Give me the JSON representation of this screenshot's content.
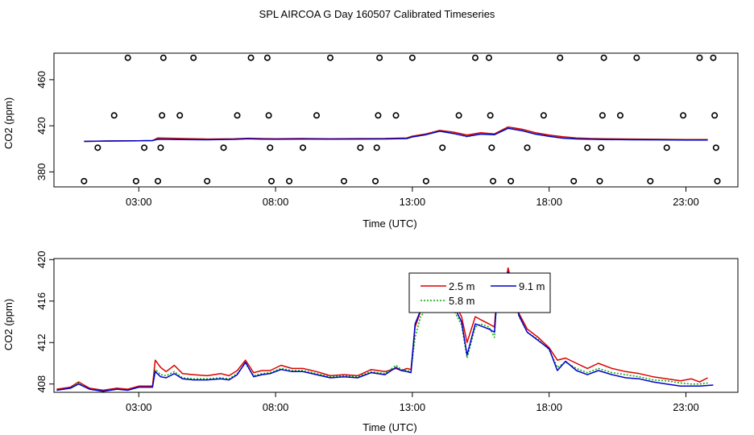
{
  "page_title": "SPL AIRCOA G  Day 160507  Calibrated Timeseries",
  "chart_data": [
    {
      "type": "line",
      "panel": "top",
      "title": "SPL AIRCOA G  Day 160507  Calibrated Timeseries",
      "xlabel": "Time (UTC)",
      "ylabel": "CO2 (ppm)",
      "xlim": [
        -0.1,
        24.9
      ],
      "ylim": [
        367,
        483
      ],
      "x_ticks": [
        3,
        8,
        13,
        18,
        23
      ],
      "x_tick_labels": [
        "03:00",
        "08:00",
        "13:00",
        "18:00",
        "23:00"
      ],
      "y_ticks": [
        380,
        420,
        460
      ],
      "y_tick_labels": [
        "380",
        "420",
        "460"
      ],
      "series": [
        {
          "name": "2.5 m",
          "color": "#dd0000",
          "x": [
            1.0,
            2.0,
            3.0,
            3.5,
            3.7,
            4.5,
            5.5,
            6.5,
            7.0,
            7.5,
            8.0,
            9.0,
            10.0,
            11.0,
            12.0,
            12.8,
            13.0,
            13.5,
            14.0,
            14.5,
            15.0,
            15.5,
            16.0,
            16.5,
            17.0,
            17.5,
            18.0,
            18.5,
            19.0,
            19.5,
            20.0,
            21.0,
            22.0,
            23.0,
            23.8
          ],
          "y": [
            406.5,
            406.8,
            407.0,
            407.2,
            409.5,
            409.0,
            408.5,
            408.8,
            409.2,
            408.9,
            408.7,
            409.0,
            408.8,
            408.9,
            409.0,
            409.5,
            411.0,
            413.0,
            416.0,
            414.5,
            412.0,
            414.0,
            413.0,
            419.0,
            417.0,
            414.0,
            412.0,
            410.5,
            409.5,
            409.0,
            408.8,
            408.5,
            408.3,
            408.0,
            408.0
          ]
        },
        {
          "name": "5.8 m",
          "color": "#00aa00",
          "x": [
            1.0,
            2.0,
            3.0,
            3.5,
            3.7,
            4.5,
            5.5,
            6.5,
            7.0,
            7.5,
            8.0,
            9.0,
            10.0,
            11.0,
            12.0,
            12.8,
            13.0,
            13.5,
            14.0,
            14.5,
            15.0,
            15.5,
            16.0,
            16.5,
            17.0,
            17.5,
            18.0,
            18.5,
            19.0,
            19.5,
            20.0,
            21.0,
            22.0,
            23.0,
            23.8
          ],
          "y": [
            406.5,
            406.8,
            407.0,
            407.2,
            408.5,
            408.3,
            408.0,
            408.3,
            408.8,
            408.5,
            408.4,
            408.6,
            408.5,
            408.6,
            408.7,
            409.0,
            410.5,
            412.5,
            415.5,
            413.5,
            410.5,
            413.0,
            412.5,
            418.0,
            416.0,
            413.0,
            411.0,
            409.5,
            408.8,
            408.5,
            408.3,
            408.1,
            408.0,
            407.8,
            407.8
          ]
        },
        {
          "name": "9.1 m",
          "color": "#0000cc",
          "x": [
            1.0,
            2.0,
            3.0,
            3.5,
            3.7,
            4.5,
            5.5,
            6.5,
            7.0,
            7.5,
            8.0,
            9.0,
            10.0,
            11.0,
            12.0,
            12.8,
            13.0,
            13.5,
            14.0,
            14.5,
            15.0,
            15.5,
            16.0,
            16.5,
            17.0,
            17.5,
            18.0,
            18.5,
            19.0,
            19.5,
            20.0,
            21.0,
            22.0,
            23.0,
            23.8
          ],
          "y": [
            406.5,
            406.8,
            407.0,
            407.2,
            408.3,
            408.1,
            407.9,
            408.2,
            408.7,
            408.4,
            408.3,
            408.5,
            408.4,
            408.5,
            408.6,
            408.9,
            410.3,
            412.3,
            415.3,
            413.3,
            410.8,
            412.8,
            412.3,
            417.8,
            415.8,
            412.8,
            410.8,
            409.3,
            408.6,
            408.3,
            408.1,
            407.9,
            407.8,
            407.6,
            407.6
          ]
        }
      ],
      "markers": [
        {
          "x": 1.0,
          "y": 372
        },
        {
          "x": 1.5,
          "y": 401
        },
        {
          "x": 2.1,
          "y": 429
        },
        {
          "x": 2.6,
          "y": 479
        },
        {
          "x": 2.9,
          "y": 372
        },
        {
          "x": 3.2,
          "y": 401
        },
        {
          "x": 3.7,
          "y": 372
        },
        {
          "x": 3.8,
          "y": 401
        },
        {
          "x": 3.85,
          "y": 429
        },
        {
          "x": 3.9,
          "y": 479
        },
        {
          "x": 4.5,
          "y": 429
        },
        {
          "x": 5.0,
          "y": 479
        },
        {
          "x": 5.5,
          "y": 372
        },
        {
          "x": 6.1,
          "y": 401
        },
        {
          "x": 6.6,
          "y": 429
        },
        {
          "x": 7.1,
          "y": 479
        },
        {
          "x": 7.7,
          "y": 479
        },
        {
          "x": 7.75,
          "y": 429
        },
        {
          "x": 7.8,
          "y": 401
        },
        {
          "x": 7.85,
          "y": 372
        },
        {
          "x": 8.5,
          "y": 372
        },
        {
          "x": 9.0,
          "y": 401
        },
        {
          "x": 9.5,
          "y": 429
        },
        {
          "x": 10.0,
          "y": 479
        },
        {
          "x": 10.5,
          "y": 372
        },
        {
          "x": 11.1,
          "y": 401
        },
        {
          "x": 11.7,
          "y": 401
        },
        {
          "x": 11.75,
          "y": 429
        },
        {
          "x": 11.8,
          "y": 479
        },
        {
          "x": 11.65,
          "y": 372
        },
        {
          "x": 12.4,
          "y": 429
        },
        {
          "x": 13.0,
          "y": 479
        },
        {
          "x": 13.5,
          "y": 372
        },
        {
          "x": 14.1,
          "y": 401
        },
        {
          "x": 14.7,
          "y": 429
        },
        {
          "x": 15.3,
          "y": 479
        },
        {
          "x": 15.8,
          "y": 479
        },
        {
          "x": 15.85,
          "y": 429
        },
        {
          "x": 15.9,
          "y": 401
        },
        {
          "x": 15.95,
          "y": 372
        },
        {
          "x": 16.6,
          "y": 372
        },
        {
          "x": 17.2,
          "y": 401
        },
        {
          "x": 17.8,
          "y": 429
        },
        {
          "x": 18.4,
          "y": 479
        },
        {
          "x": 18.9,
          "y": 372
        },
        {
          "x": 19.4,
          "y": 401
        },
        {
          "x": 19.9,
          "y": 401
        },
        {
          "x": 19.95,
          "y": 429
        },
        {
          "x": 20.0,
          "y": 479
        },
        {
          "x": 19.85,
          "y": 372
        },
        {
          "x": 20.6,
          "y": 429
        },
        {
          "x": 21.2,
          "y": 479
        },
        {
          "x": 21.7,
          "y": 372
        },
        {
          "x": 22.3,
          "y": 401
        },
        {
          "x": 22.9,
          "y": 429
        },
        {
          "x": 23.5,
          "y": 479
        },
        {
          "x": 24.0,
          "y": 479
        },
        {
          "x": 24.05,
          "y": 429
        },
        {
          "x": 24.1,
          "y": 401
        },
        {
          "x": 24.15,
          "y": 372
        }
      ]
    },
    {
      "type": "line",
      "panel": "bottom",
      "xlabel": "Time (UTC)",
      "ylabel": "CO2 (ppm)",
      "xlim": [
        -0.1,
        24.9
      ],
      "ylim": [
        407.2,
        420.1
      ],
      "x_ticks": [
        3,
        8,
        13,
        18,
        23
      ],
      "x_tick_labels": [
        "03:00",
        "08:00",
        "13:00",
        "18:00",
        "23:00"
      ],
      "y_ticks": [
        408,
        412,
        416,
        420
      ],
      "y_tick_labels": [
        "408",
        "412",
        "416",
        "420"
      ],
      "legend": {
        "position": "top-center",
        "entries": [
          "2.5 m",
          "5.8 m",
          "9.1 m"
        ]
      },
      "series": [
        {
          "name": "2.5 m",
          "color": "#dd0000",
          "x": [
            0.0,
            0.5,
            0.8,
            1.2,
            1.7,
            2.2,
            2.6,
            3.0,
            3.3,
            3.5,
            3.6,
            3.8,
            4.0,
            4.3,
            4.6,
            5.0,
            5.5,
            6.0,
            6.3,
            6.6,
            6.9,
            7.2,
            7.5,
            7.8,
            8.2,
            8.6,
            9.0,
            9.5,
            10.0,
            10.5,
            11.0,
            11.5,
            12.0,
            12.4,
            12.6,
            12.8,
            12.95,
            13.1,
            13.3,
            13.6,
            13.9,
            14.2,
            14.5,
            14.8,
            15.0,
            15.3,
            15.5,
            15.8,
            16.0,
            16.1,
            16.3,
            16.5,
            16.7,
            16.9,
            17.2,
            17.6,
            18.0,
            18.3,
            18.6,
            19.0,
            19.4,
            19.8,
            20.3,
            20.8,
            21.3,
            21.8,
            22.3,
            22.8,
            23.2,
            23.5,
            23.8
          ],
          "y": [
            407.5,
            407.7,
            408.2,
            407.6,
            407.4,
            407.6,
            407.5,
            407.8,
            407.8,
            407.8,
            410.3,
            409.6,
            409.2,
            409.8,
            409.0,
            408.9,
            408.8,
            409.0,
            408.8,
            409.3,
            410.3,
            409.1,
            409.3,
            409.3,
            409.8,
            409.5,
            409.5,
            409.2,
            408.8,
            408.9,
            408.8,
            409.4,
            409.2,
            409.5,
            409.3,
            409.5,
            409.4,
            413.5,
            415.0,
            415.8,
            417.3,
            417.0,
            416.0,
            414.5,
            412.0,
            414.5,
            414.2,
            413.8,
            413.5,
            417.0,
            415.8,
            419.2,
            417.0,
            414.8,
            413.3,
            412.5,
            411.5,
            410.3,
            410.5,
            410.0,
            409.5,
            410.0,
            409.5,
            409.2,
            409.0,
            408.7,
            408.5,
            408.3,
            408.5,
            408.2,
            408.6
          ]
        },
        {
          "name": "5.8 m",
          "color": "#00aa00",
          "x": [
            0.0,
            0.5,
            0.8,
            1.2,
            1.7,
            2.2,
            2.6,
            3.0,
            3.3,
            3.5,
            3.6,
            3.8,
            4.0,
            4.3,
            4.6,
            5.0,
            5.5,
            6.0,
            6.3,
            6.6,
            6.9,
            7.2,
            7.5,
            7.8,
            8.2,
            8.6,
            9.0,
            9.5,
            10.0,
            10.5,
            11.0,
            11.5,
            12.0,
            12.4,
            12.6,
            12.8,
            12.95,
            13.1,
            13.3,
            13.6,
            13.9,
            14.2,
            14.5,
            14.8,
            15.0,
            15.3,
            15.5,
            15.8,
            16.0,
            16.1,
            16.3,
            16.5,
            16.7,
            16.9,
            17.2,
            17.6,
            18.0,
            18.3,
            18.6,
            19.0,
            19.4,
            19.8,
            20.3,
            20.8,
            21.3,
            21.8,
            22.3,
            22.8,
            23.2,
            23.5,
            23.8
          ],
          "y": [
            407.4,
            407.6,
            408.1,
            407.5,
            407.3,
            407.5,
            407.4,
            407.7,
            407.7,
            407.7,
            409.4,
            408.9,
            408.8,
            409.2,
            408.6,
            408.5,
            408.5,
            408.6,
            408.5,
            409.0,
            410.0,
            408.8,
            409.0,
            409.1,
            409.5,
            409.3,
            409.3,
            409.0,
            408.7,
            408.8,
            408.7,
            409.2,
            409.0,
            409.8,
            409.4,
            409.3,
            409.2,
            412.5,
            414.5,
            415.5,
            417.5,
            417.6,
            415.2,
            413.7,
            410.5,
            413.5,
            413.8,
            413.5,
            412.5,
            416.8,
            415.2,
            418.5,
            416.5,
            414.5,
            413.0,
            412.3,
            411.3,
            409.6,
            410.1,
            409.5,
            409.1,
            409.5,
            409.1,
            408.9,
            408.7,
            408.4,
            408.3,
            408.1,
            408.0,
            408.0,
            408.1
          ]
        },
        {
          "name": "9.1 m",
          "color": "#0000cc",
          "x": [
            0.0,
            0.5,
            0.8,
            1.2,
            1.7,
            2.2,
            2.6,
            3.0,
            3.3,
            3.5,
            3.6,
            3.8,
            4.0,
            4.3,
            4.6,
            5.0,
            5.5,
            6.0,
            6.3,
            6.6,
            6.9,
            7.2,
            7.5,
            7.8,
            8.2,
            8.6,
            9.0,
            9.5,
            10.0,
            10.5,
            11.0,
            11.5,
            12.0,
            12.4,
            12.6,
            12.8,
            12.95,
            13.1,
            13.3,
            13.6,
            13.9,
            14.2,
            14.5,
            14.8,
            15.0,
            15.3,
            15.5,
            15.8,
            16.0,
            16.1,
            16.3,
            16.5,
            16.7,
            16.9,
            17.2,
            17.6,
            18.0,
            18.3,
            18.6,
            19.0,
            19.4,
            19.8,
            20.3,
            20.8,
            21.3,
            21.8,
            22.3,
            22.8,
            23.2,
            23.5,
            24.0
          ],
          "y": [
            407.4,
            407.6,
            408.0,
            407.5,
            407.3,
            407.5,
            407.4,
            407.7,
            407.7,
            407.7,
            409.2,
            408.7,
            408.6,
            409.0,
            408.5,
            408.4,
            408.4,
            408.5,
            408.4,
            408.9,
            410.1,
            408.7,
            408.9,
            409.0,
            409.4,
            409.2,
            409.2,
            408.9,
            408.6,
            408.7,
            408.6,
            409.1,
            408.9,
            409.6,
            409.3,
            409.2,
            409.1,
            413.8,
            415.1,
            415.7,
            417.4,
            417.8,
            415.6,
            414.0,
            410.8,
            413.8,
            413.6,
            413.3,
            413.0,
            416.5,
            415.4,
            418.8,
            416.8,
            414.6,
            413.0,
            412.2,
            411.4,
            409.3,
            410.2,
            409.3,
            408.9,
            409.3,
            408.9,
            408.6,
            408.5,
            408.2,
            408.0,
            407.8,
            407.8,
            407.8,
            407.9
          ]
        }
      ]
    }
  ]
}
